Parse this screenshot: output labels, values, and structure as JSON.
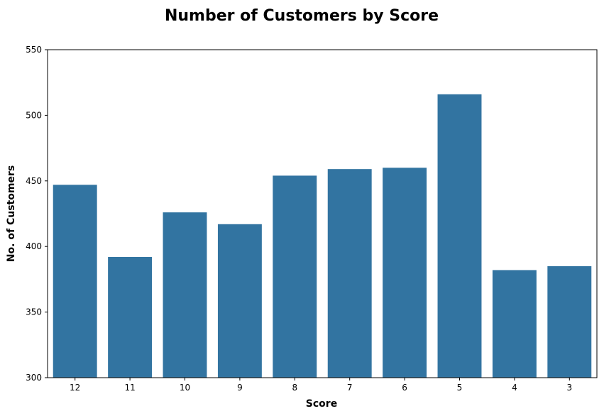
{
  "chart_data": {
    "type": "bar",
    "title": "Number of Customers by Score",
    "xlabel": "Score",
    "ylabel": "No. of Customers",
    "categories": [
      "12",
      "11",
      "10",
      "9",
      "8",
      "7",
      "6",
      "5",
      "4",
      "3"
    ],
    "values": [
      447,
      392,
      426,
      417,
      454,
      459,
      460,
      516,
      382,
      385
    ],
    "ylim": [
      300,
      550
    ],
    "yticks": [
      300,
      350,
      400,
      450,
      500,
      550
    ],
    "grid": false,
    "bar_color": "#3274a1"
  }
}
